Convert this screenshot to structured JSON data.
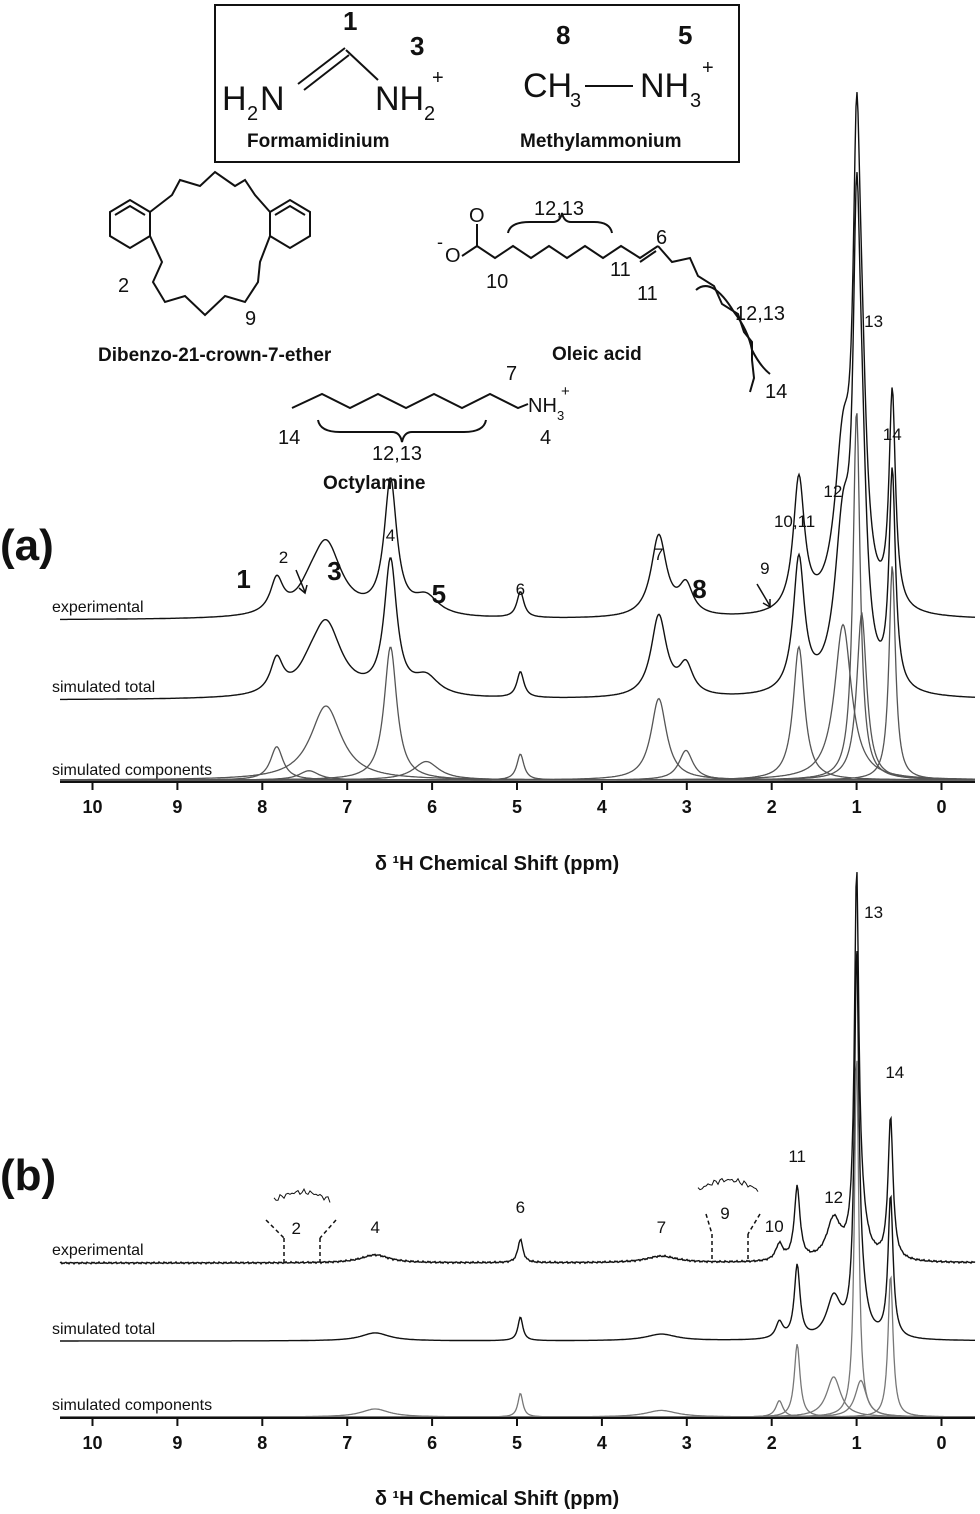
{
  "legend_box": {
    "fa": {
      "num_c": "1",
      "num_n": "3",
      "h2n": "H",
      "h2n_sub": "2",
      "h2n_n": "N",
      "nh2": "NH",
      "nh2_sub": "2",
      "nh2_sup": "+",
      "name": "Formamidinium"
    },
    "ma": {
      "num_c": "8",
      "num_n": "5",
      "ch3": "CH",
      "ch3_sub": "3",
      "nh3": "NH",
      "nh3_sub": "3",
      "nh3_sup": "+",
      "name": "Methylammonium"
    }
  },
  "molecules": {
    "crown": {
      "name": "Dibenzo-21-crown-7-ether",
      "label_2": "2",
      "label_9": "9"
    },
    "oleic": {
      "name": "Oleic acid",
      "charge": "-",
      "o": "O",
      "labels": {
        "l1213a": "12,13",
        "l6": "6",
        "l10": "10",
        "l11a": "11",
        "l11b": "11",
        "l1213b": "12,13",
        "l14": "14"
      }
    },
    "octyl": {
      "name": "Octylamine",
      "nh3": "NH",
      "nh3_sub": "3",
      "nh3_sup": "+",
      "l7": "7",
      "l14": "14",
      "l1213": "12,13",
      "l4": "4"
    }
  },
  "chart_data": [
    {
      "type": "line",
      "panel_label": "(a)",
      "xlabel": "δ ¹H Chemical Shift (ppm)",
      "xlim": [
        10.6,
        -0.4
      ],
      "xticks": [
        10,
        9,
        8,
        7,
        6,
        5,
        4,
        3,
        2,
        1,
        0
      ],
      "trace_labels": {
        "experimental": "experimental",
        "total": "simulated total",
        "components": "simulated components"
      },
      "components": [
        {
          "center": 7.83,
          "width": 0.09,
          "height": 0.09
        },
        {
          "center": 7.45,
          "width": 0.14,
          "height": 0.025
        },
        {
          "center": 7.25,
          "width": 0.22,
          "height": 0.2
        },
        {
          "center": 6.49,
          "width": 0.09,
          "height": 0.36
        },
        {
          "center": 6.07,
          "width": 0.18,
          "height": 0.05
        },
        {
          "center": 4.96,
          "width": 0.05,
          "height": 0.07
        },
        {
          "center": 3.33,
          "width": 0.11,
          "height": 0.22
        },
        {
          "center": 3.01,
          "width": 0.1,
          "height": 0.08
        },
        {
          "center": 1.68,
          "width": 0.08,
          "height": 0.36
        },
        {
          "center": 1.16,
          "width": 0.12,
          "height": 0.42
        },
        {
          "center": 1.0,
          "width": 0.05,
          "height": 1.0
        },
        {
          "center": 0.94,
          "width": 0.07,
          "height": 0.45
        },
        {
          "center": 0.58,
          "width": 0.045,
          "height": 0.58
        }
      ],
      "peak_labels": [
        {
          "text": "1",
          "ppm": 8.22,
          "big": true
        },
        {
          "text": "2",
          "ppm": 7.75,
          "big": false
        },
        {
          "text": "3",
          "ppm": 7.15,
          "big": true
        },
        {
          "text": "4",
          "ppm": 6.49,
          "big": false
        },
        {
          "text": "5",
          "ppm": 5.92,
          "big": true
        },
        {
          "text": "6",
          "ppm": 4.96,
          "big": false
        },
        {
          "text": "7",
          "ppm": 3.33,
          "big": false
        },
        {
          "text": "8",
          "ppm": 2.85,
          "big": true
        },
        {
          "text": "9",
          "ppm": 2.08,
          "big": false
        },
        {
          "text": "10,11",
          "ppm": 1.73,
          "big": false
        },
        {
          "text": "12",
          "ppm": 1.28,
          "big": false
        },
        {
          "text": "13",
          "ppm": 0.8,
          "big": false
        },
        {
          "text": "14",
          "ppm": 0.58,
          "big": false
        }
      ]
    },
    {
      "type": "line",
      "panel_label": "(b)",
      "xlabel": "δ ¹H Chemical Shift (ppm)",
      "xlim": [
        10.6,
        -0.4
      ],
      "xticks": [
        10,
        9,
        8,
        7,
        6,
        5,
        4,
        3,
        2,
        1,
        0
      ],
      "trace_labels": {
        "experimental": "experimental",
        "total": "simulated total",
        "components": "simulated components"
      },
      "components": [
        {
          "center": 6.67,
          "width": 0.2,
          "height": 0.022
        },
        {
          "center": 4.96,
          "width": 0.035,
          "height": 0.065
        },
        {
          "center": 3.3,
          "width": 0.22,
          "height": 0.018
        },
        {
          "center": 1.91,
          "width": 0.05,
          "height": 0.045
        },
        {
          "center": 1.7,
          "width": 0.04,
          "height": 0.2
        },
        {
          "center": 1.27,
          "width": 0.1,
          "height": 0.11
        },
        {
          "center": 1.0,
          "width": 0.03,
          "height": 1.0
        },
        {
          "center": 0.95,
          "width": 0.08,
          "height": 0.1
        },
        {
          "center": 0.6,
          "width": 0.035,
          "height": 0.39
        }
      ],
      "peak_labels": [
        {
          "text": "2",
          "ppm": 7.6
        },
        {
          "text": "4",
          "ppm": 6.67
        },
        {
          "text": "6",
          "ppm": 4.96
        },
        {
          "text": "7",
          "ppm": 3.3
        },
        {
          "text": "9",
          "ppm": 2.55
        },
        {
          "text": "10",
          "ppm": 1.97
        },
        {
          "text": "11",
          "ppm": 1.7
        },
        {
          "text": "12",
          "ppm": 1.27
        },
        {
          "text": "13",
          "ppm": 0.8
        },
        {
          "text": "14",
          "ppm": 0.55
        }
      ]
    }
  ]
}
